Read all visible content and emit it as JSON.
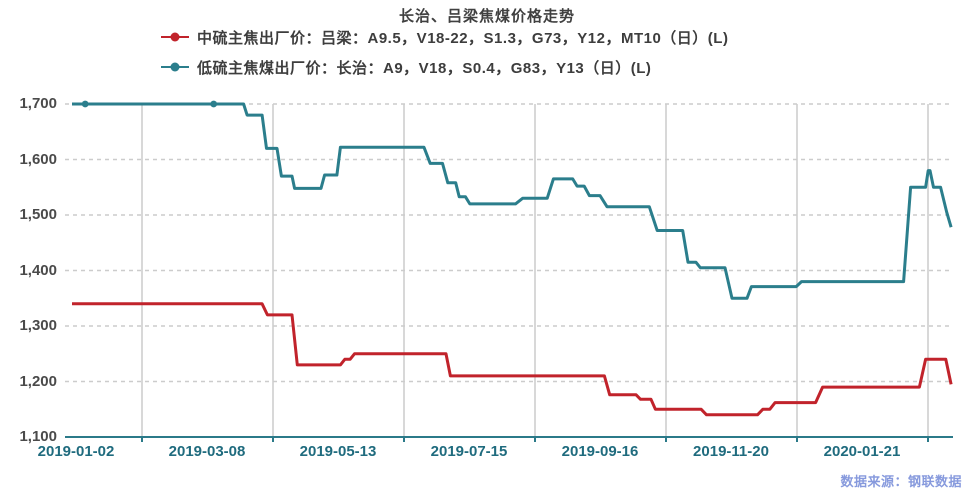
{
  "colors": {
    "background": "#FFFFFF",
    "red_series": "#C1232B",
    "teal_series": "#2B7E8C",
    "axis_line": "#2B7A89",
    "x_label": "#1F6B7E",
    "y_label": "#4A4A4A",
    "title_text": "#404040",
    "legend_text": "#3D3D3D",
    "grid_line": "#CCCCCC",
    "source_text": "#7B90DA"
  },
  "chart_data": {
    "type": "line",
    "title": "长治、吕梁焦煤价格走势",
    "source": "数据来源：钢联数据",
    "legend_position": "top-left, two rows",
    "grid": {
      "horizontal": "dashed",
      "vertical": "solid"
    },
    "x_axis": {
      "tick_labels": [
        "2019-01-02",
        "2019-03-08",
        "2019-05-13",
        "2019-07-15",
        "2019-09-16",
        "2019-11-20",
        "2020-01-21"
      ]
    },
    "y_axis": {
      "min": 1100,
      "max": 1700,
      "step": 100,
      "tick_labels": [
        "1,100",
        "1,200",
        "1,300",
        "1,400",
        "1,500",
        "1,600",
        "1,700"
      ]
    },
    "series": [
      {
        "name": "中硫主焦出厂价：吕梁：A9.5，V18-22，S1.3，G73，Y12，MT10（日）(L)",
        "color": "#C1232B",
        "points": [
          [
            0.0,
            1340
          ],
          [
            0.216,
            1340
          ],
          [
            0.222,
            1320
          ],
          [
            0.25,
            1320
          ],
          [
            0.256,
            1230
          ],
          [
            0.305,
            1230
          ],
          [
            0.31,
            1240
          ],
          [
            0.316,
            1240
          ],
          [
            0.321,
            1250
          ],
          [
            0.425,
            1250
          ],
          [
            0.43,
            1210
          ],
          [
            0.605,
            1210
          ],
          [
            0.611,
            1176
          ],
          [
            0.641,
            1176
          ],
          [
            0.646,
            1168
          ],
          [
            0.658,
            1168
          ],
          [
            0.663,
            1150
          ],
          [
            0.715,
            1150
          ],
          [
            0.721,
            1140
          ],
          [
            0.779,
            1140
          ],
          [
            0.785,
            1150
          ],
          [
            0.793,
            1150
          ],
          [
            0.799,
            1162
          ],
          [
            0.845,
            1162
          ],
          [
            0.853,
            1190
          ],
          [
            0.963,
            1190
          ],
          [
            0.97,
            1240
          ],
          [
            0.993,
            1240
          ],
          [
            0.999,
            1195
          ]
        ]
      },
      {
        "name": "低硫主焦煤出厂价：长治：A9，V18，S0.4，G83，Y13（日）(L)",
        "color": "#2B7E8C",
        "symbol_points": [
          [
            0.015,
            1700
          ],
          [
            0.161,
            1700
          ]
        ],
        "points": [
          [
            0.0,
            1700
          ],
          [
            0.195,
            1700
          ],
          [
            0.199,
            1680
          ],
          [
            0.216,
            1680
          ],
          [
            0.221,
            1620
          ],
          [
            0.233,
            1620
          ],
          [
            0.238,
            1570
          ],
          [
            0.25,
            1570
          ],
          [
            0.253,
            1548
          ],
          [
            0.283,
            1548
          ],
          [
            0.287,
            1572
          ],
          [
            0.301,
            1572
          ],
          [
            0.305,
            1622
          ],
          [
            0.4,
            1622
          ],
          [
            0.407,
            1593
          ],
          [
            0.421,
            1593
          ],
          [
            0.427,
            1558
          ],
          [
            0.436,
            1558
          ],
          [
            0.44,
            1533
          ],
          [
            0.447,
            1533
          ],
          [
            0.452,
            1520
          ],
          [
            0.504,
            1520
          ],
          [
            0.512,
            1530
          ],
          [
            0.54,
            1530
          ],
          [
            0.547,
            1565
          ],
          [
            0.569,
            1565
          ],
          [
            0.574,
            1552
          ],
          [
            0.582,
            1552
          ],
          [
            0.588,
            1535
          ],
          [
            0.6,
            1535
          ],
          [
            0.608,
            1515
          ],
          [
            0.656,
            1515
          ],
          [
            0.665,
            1472
          ],
          [
            0.694,
            1472
          ],
          [
            0.7,
            1415
          ],
          [
            0.709,
            1415
          ],
          [
            0.714,
            1405
          ],
          [
            0.742,
            1405
          ],
          [
            0.75,
            1350
          ],
          [
            0.767,
            1350
          ],
          [
            0.772,
            1371
          ],
          [
            0.823,
            1371
          ],
          [
            0.829,
            1380
          ],
          [
            0.945,
            1380
          ],
          [
            0.953,
            1550
          ],
          [
            0.97,
            1550
          ],
          [
            0.973,
            1580
          ],
          [
            0.975,
            1580
          ],
          [
            0.979,
            1550
          ],
          [
            0.987,
            1550
          ],
          [
            0.994,
            1505
          ],
          [
            0.999,
            1478
          ]
        ]
      }
    ]
  }
}
